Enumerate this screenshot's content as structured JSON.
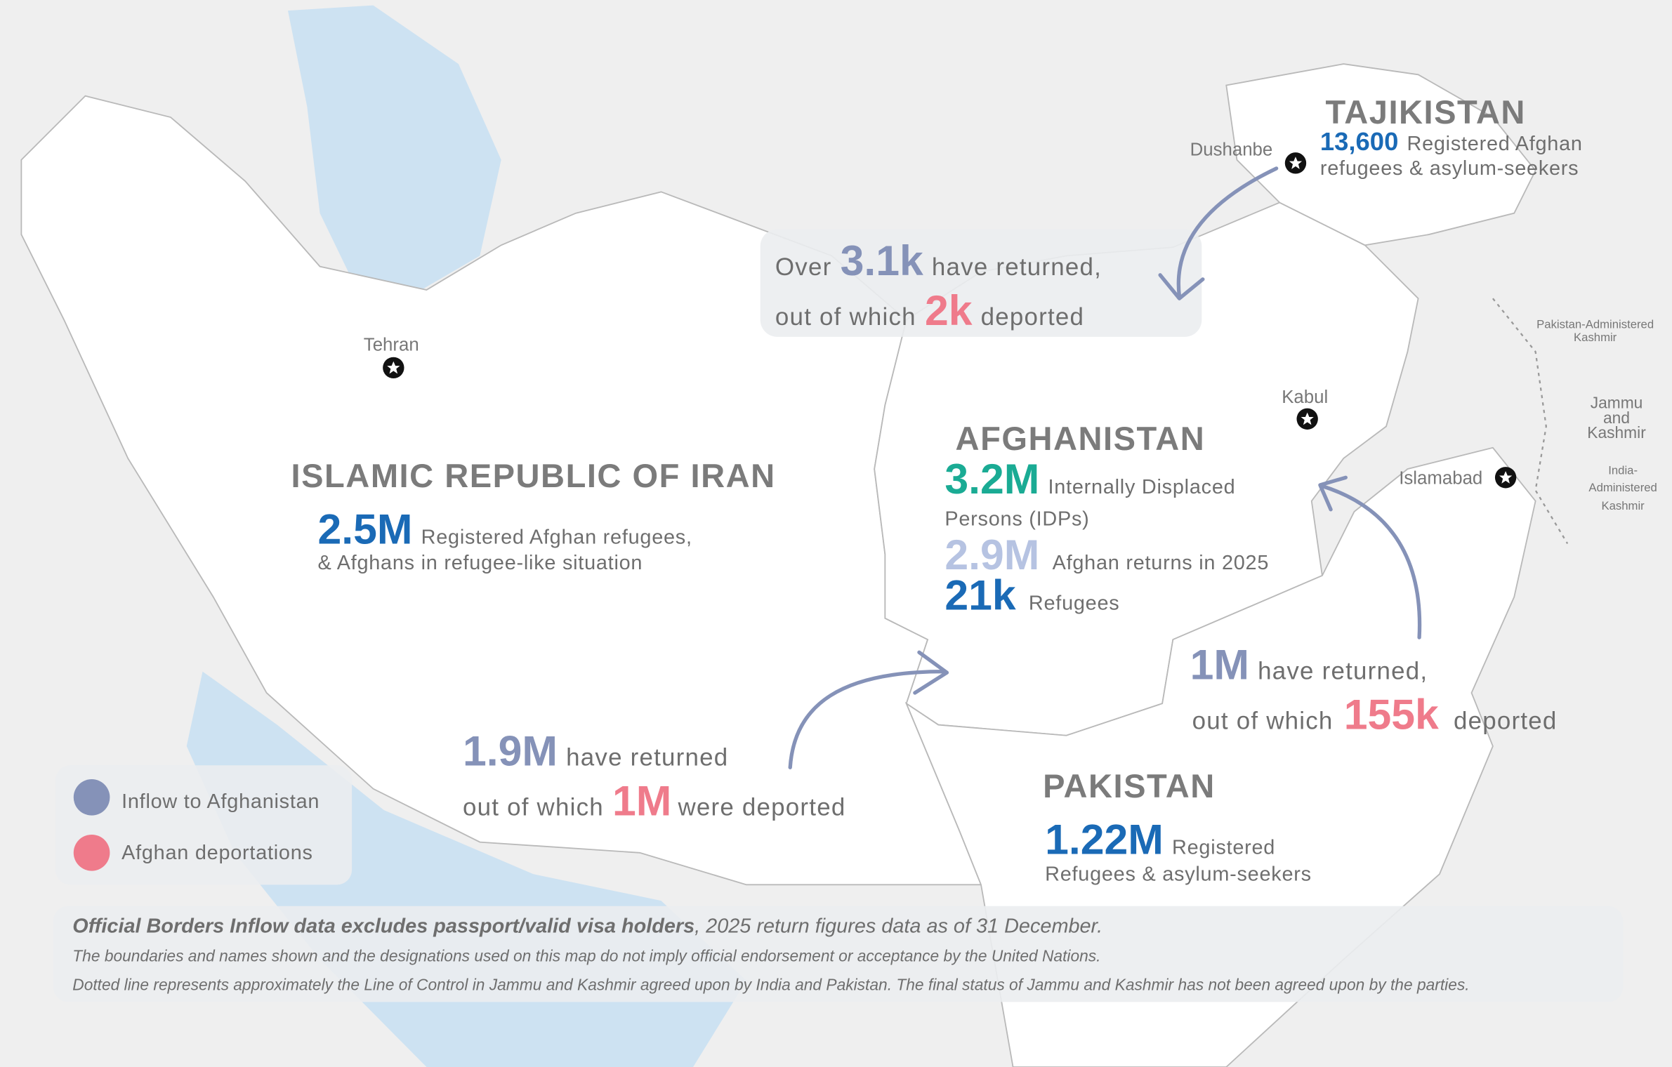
{
  "cities": {
    "tehran": "Tehran",
    "kabul": "Kabul",
    "dushanbe": "Dushanbe",
    "islamabad": "Islamabad"
  },
  "iran": {
    "name": "ISLAMIC REPUBLIC OF IRAN",
    "figure": "2.5M",
    "text": "Registered Afghan refugees,",
    "text2": "& Afghans in refugee-like situation",
    "flow": {
      "returned": "1.9M",
      "returned_text": "have returned",
      "prefix": "out of which",
      "deported": "1M",
      "deported_text": "were deported"
    }
  },
  "afghanistan": {
    "name": "AFGHANISTAN",
    "idps": {
      "figure": "3.2M",
      "text": "Internally Displaced",
      "text2": "Persons (IDPs)"
    },
    "returns": {
      "figure": "2.9M",
      "text": "Afghan returns in 2025"
    },
    "refugees": {
      "figure": "21k",
      "text": "Refugees"
    }
  },
  "tajikistan": {
    "name": "TAJIKISTAN",
    "figure": "13,600",
    "text": "Registered Afghan",
    "text2": "refugees & asylum-seekers",
    "flow": {
      "prefix1": "Over",
      "returned": "3.1k",
      "returned_text": "have returned,",
      "prefix": "out of which",
      "deported": "2k",
      "deported_text": "deported"
    }
  },
  "pakistan": {
    "name": "PAKISTAN",
    "figure": "1.22M",
    "text": "Registered",
    "text2": "Refugees & asylum-seekers",
    "flow": {
      "returned": "1M",
      "returned_text": "have returned,",
      "prefix": "out of which",
      "deported": "155k",
      "deported_text": "deported"
    }
  },
  "kashmir": {
    "pakistan_administered": [
      "Pakistan-Administered",
      "Kashmir"
    ],
    "jammu": [
      "Jammu",
      "and",
      "Kashmir"
    ],
    "india_administered": [
      "India-",
      "Administered",
      "Kashmir"
    ]
  },
  "legend": [
    "Inflow to Afghanistan",
    "Afghan deportations"
  ],
  "footnote": {
    "bold": "Official Borders Inflow data excludes passport/valid visa holders",
    "rest": ", 2025 return figures data as of 31 December.",
    "line2": "The boundaries and names shown and the designations used on this map do not imply official endorsement or acceptance by the United Nations.",
    "line3": "Dotted line represents approximately the Line of Control in Jammu and Kashmir agreed upon by India and  Pakistan. The final status of Jammu and Kashmir has not been agreed upon by the parties."
  }
}
